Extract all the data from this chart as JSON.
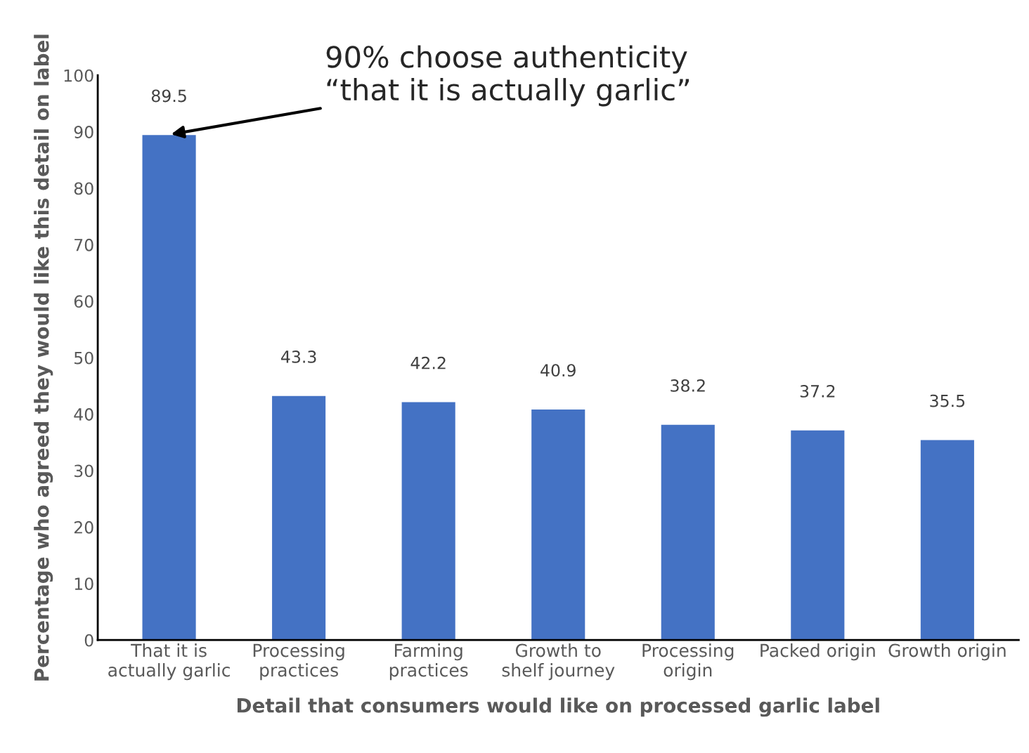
{
  "chart_data": {
    "type": "bar",
    "categories": [
      "That it is\nactually garlic",
      "Processing\npractices",
      "Farming\npractices",
      "Growth to\nshelf journey",
      "Processing\norigin",
      "Packed origin",
      "Growth origin"
    ],
    "values": [
      89.5,
      43.3,
      42.2,
      40.9,
      38.2,
      37.2,
      35.5
    ],
    "color": "#4472c4",
    "xlabel": "Detail that consumers would like on processed garlic label",
    "ylabel": "Percentage who agreed they would like this detail on label",
    "ylim": [
      0,
      100
    ],
    "yticks": [
      0,
      10,
      20,
      30,
      40,
      50,
      60,
      70,
      80,
      90,
      100
    ],
    "grid": false,
    "data_labels": true,
    "annotations": [
      {
        "text": "90% choose authenticity\n“that it is actually garlic”",
        "x": "That it is\nactually garlic",
        "y": 89.5
      }
    ]
  }
}
